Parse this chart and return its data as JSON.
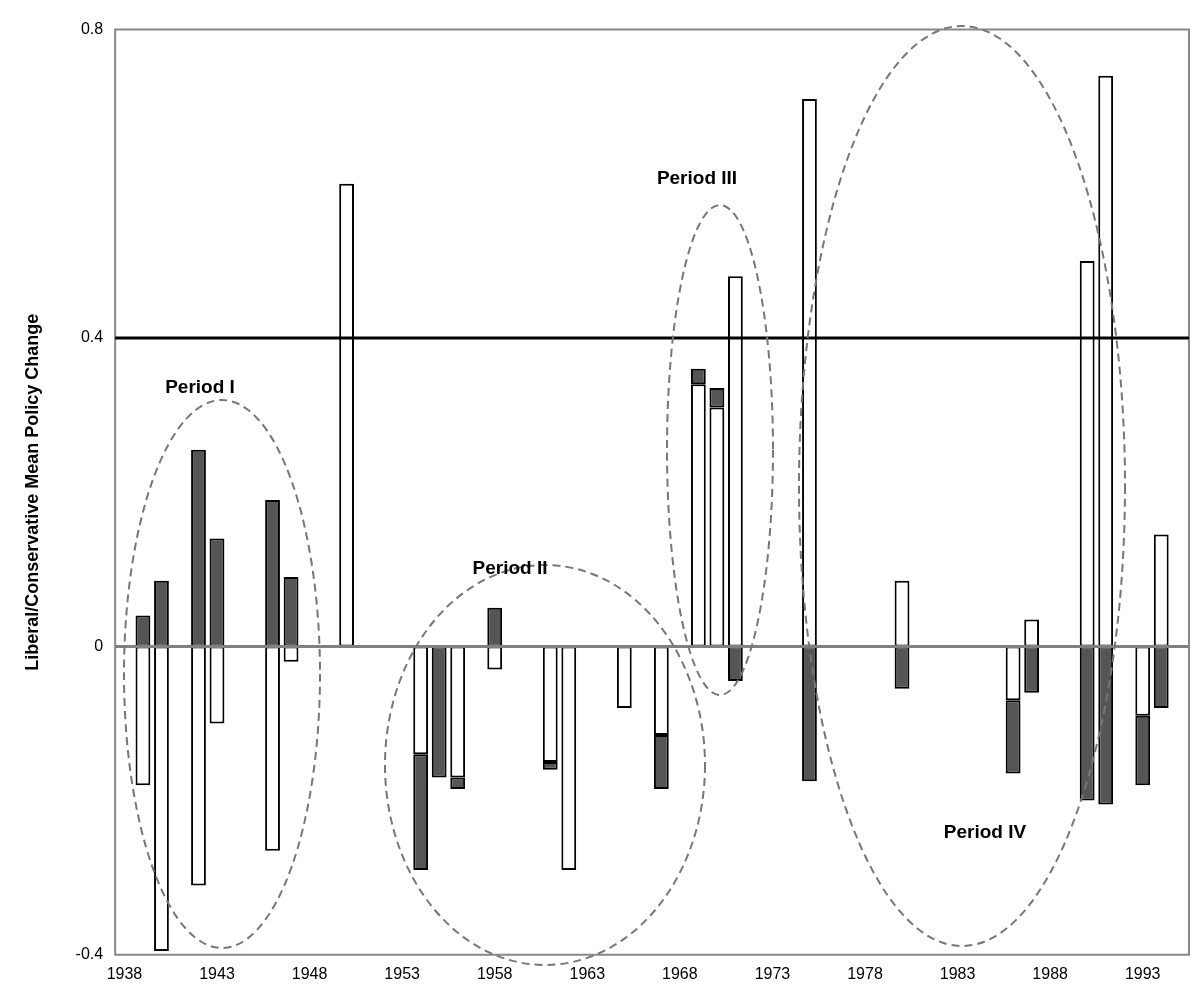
{
  "chart_data": {
    "type": "bar",
    "ylabel": "Liberal/Conservative Mean Policy Change",
    "categories": [
      "1938",
      null,
      null,
      null,
      null,
      "1943",
      null,
      null,
      null,
      null,
      "1948",
      null,
      null,
      null,
      null,
      "1953",
      null,
      null,
      null,
      null,
      "1958",
      null,
      null,
      null,
      null,
      "1963",
      null,
      null,
      null,
      null,
      "1968",
      null,
      null,
      null,
      null,
      "1973",
      null,
      null,
      null,
      null,
      "1978",
      null,
      null,
      null,
      null,
      "1983",
      null,
      null,
      null,
      null,
      "1988",
      null,
      null,
      null,
      null,
      "1993",
      null,
      null
    ],
    "stacked": true,
    "series": [
      {
        "color": "#ffffff",
        "values": [
          null,
          -0.18,
          -0.395,
          null,
          -0.31,
          -0.1,
          null,
          null,
          -0.265,
          -0.02,
          null,
          null,
          0.6,
          null,
          null,
          null,
          -0.14,
          null,
          -0.17,
          null,
          -0.03,
          null,
          null,
          -0.15,
          -0.29,
          null,
          null,
          -0.08,
          null,
          -0.115,
          null,
          0.34,
          0.31,
          0.48,
          null,
          null,
          null,
          0.71,
          null,
          null,
          null,
          null,
          0.085,
          null,
          null,
          null,
          null,
          null,
          -0.07,
          0.035,
          null,
          null,
          0.5,
          0.74,
          null,
          -0.09,
          0.145,
          null
        ]
      },
      {
        "color": "#555555",
        "values": [
          null,
          0.04,
          0.085,
          null,
          0.255,
          0.14,
          null,
          null,
          0.19,
          0.09,
          null,
          null,
          null,
          null,
          null,
          null,
          -0.15,
          -0.17,
          -0.015,
          null,
          0.05,
          null,
          null,
          -0.01,
          null,
          null,
          null,
          null,
          null,
          -0.07,
          null,
          0.02,
          0.025,
          -0.045,
          null,
          null,
          null,
          -0.175,
          null,
          null,
          null,
          null,
          -0.055,
          null,
          null,
          null,
          null,
          null,
          -0.095,
          -0.06,
          null,
          null,
          -0.2,
          -0.205,
          null,
          -0.09,
          -0.08,
          null
        ]
      }
    ],
    "ylim": [
      -0.4,
      0.8
    ],
    "yticks": [
      -0.4,
      0,
      0.4,
      0.8
    ],
    "grid": false,
    "legend": false,
    "ref_lines": [
      {
        "axis": "y",
        "value": 0.4,
        "color": "#000000"
      },
      {
        "axis": "y",
        "value": 0,
        "color": "#808080"
      }
    ],
    "annotations": [
      "Period I",
      "Period II",
      "Period III",
      "Period IV"
    ]
  }
}
